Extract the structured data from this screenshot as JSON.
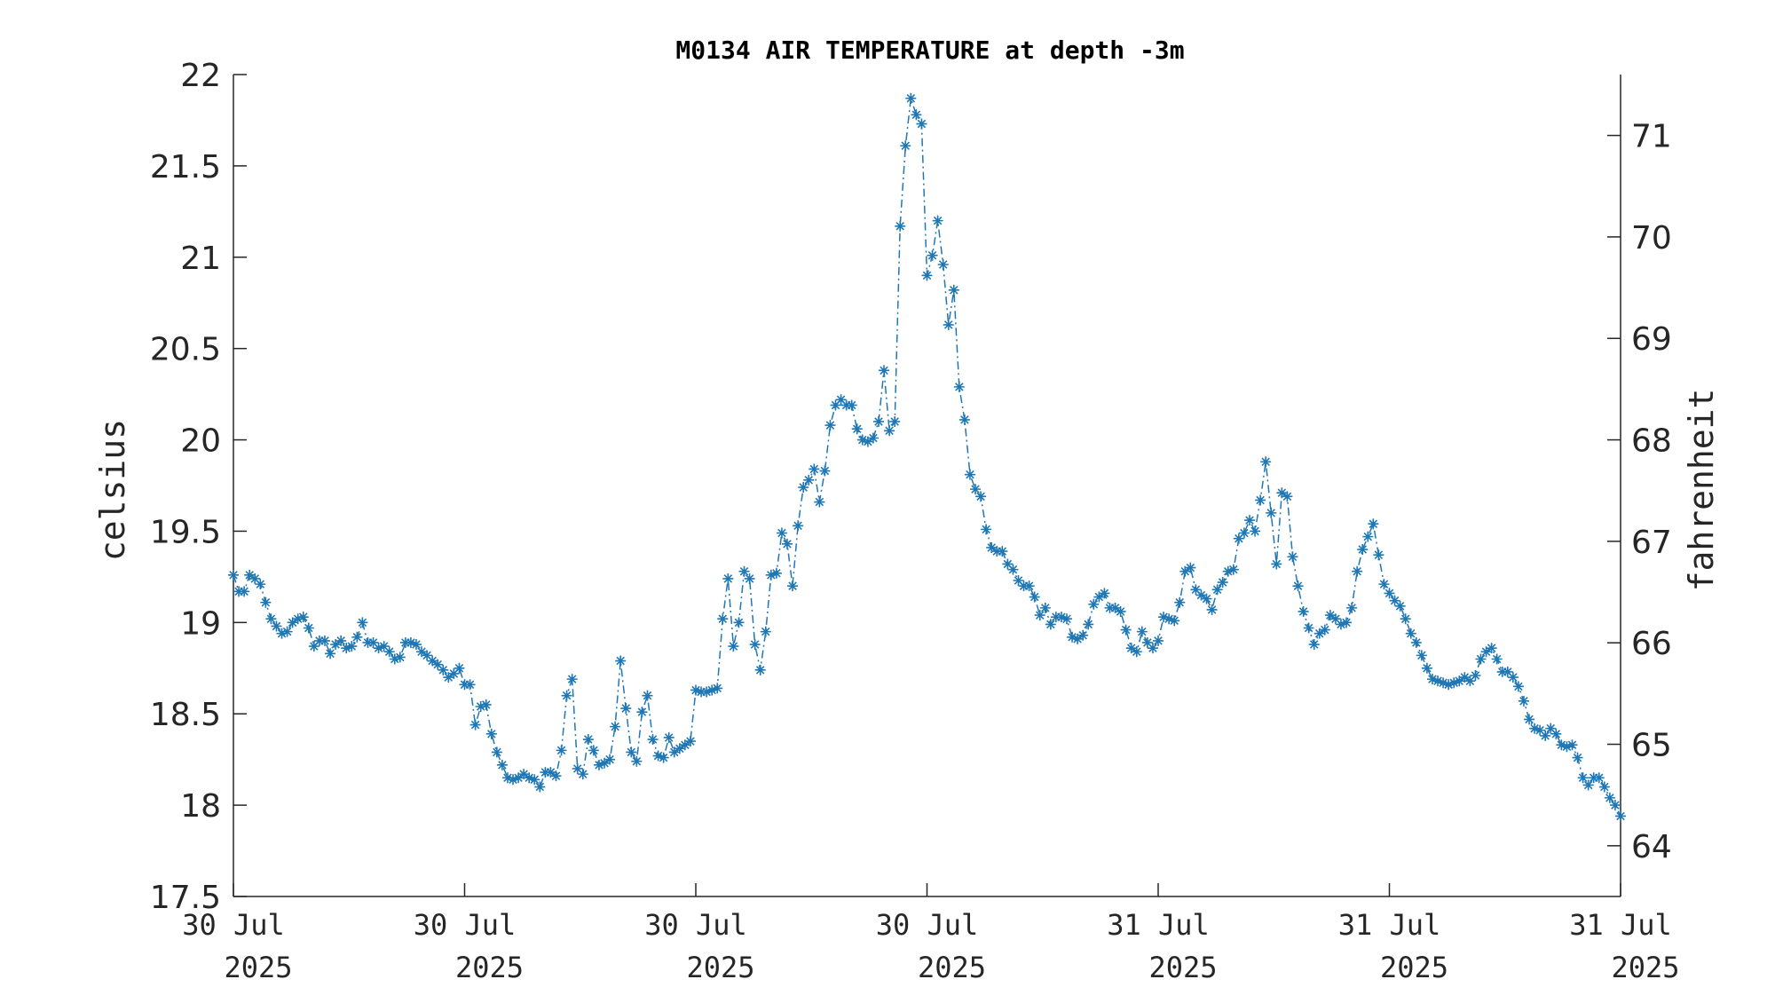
{
  "chart_data": {
    "type": "line",
    "title": "M0134 AIR TEMPERATURE at depth -3m",
    "ylabel_left": "celsius",
    "ylabel_right": "fahrenheit",
    "xlabel": "",
    "ylim": [
      17.5,
      22
    ],
    "ylim_right_derived_from": "celsius*9/5+32",
    "y_ticks": [
      "17.5",
      "18",
      "18.5",
      "19",
      "19.5",
      "20",
      "20.5",
      "21",
      "21.5",
      "22"
    ],
    "y_ticks_right": [
      "64",
      "65",
      "66",
      "67",
      "68",
      "69",
      "70",
      "71"
    ],
    "x_ticks": [
      {
        "day": "30 Jul",
        "year": "2025"
      },
      {
        "day": "30 Jul",
        "year": "2025"
      },
      {
        "day": "30 Jul",
        "year": "2025"
      },
      {
        "day": "30 Jul",
        "year": "2025"
      },
      {
        "day": "31 Jul",
        "year": "2025"
      },
      {
        "day": "31 Jul",
        "year": "2025"
      },
      {
        "day": "31 Jul",
        "year": "2025"
      }
    ],
    "grid": false,
    "marker": "*",
    "line_style": "dash-dot",
    "color": "#1f77b4",
    "series": [
      {
        "values": [
          19.26,
          19.17,
          19.17,
          19.26,
          19.24,
          19.21,
          19.11,
          19.02,
          18.98,
          18.94,
          18.95,
          19.0,
          19.02,
          19.03,
          18.97,
          18.87,
          18.9,
          18.9,
          18.83,
          18.88,
          18.9,
          18.86,
          18.87,
          18.92,
          19.0,
          18.89,
          18.89,
          18.86,
          18.87,
          18.84,
          18.8,
          18.81,
          18.89,
          18.89,
          18.88,
          18.84,
          18.82,
          18.79,
          18.77,
          18.74,
          18.7,
          18.72,
          18.75,
          18.66,
          18.66,
          18.44,
          18.54,
          18.55,
          18.39,
          18.29,
          18.22,
          18.15,
          18.14,
          18.15,
          18.17,
          18.15,
          18.14,
          18.1,
          18.18,
          18.18,
          18.16,
          18.3,
          18.6,
          18.69,
          18.2,
          18.17,
          18.36,
          18.3,
          18.22,
          18.23,
          18.25,
          18.43,
          18.79,
          18.53,
          18.29,
          18.24,
          18.51,
          18.6,
          18.36,
          18.27,
          18.26,
          18.37,
          18.29,
          18.31,
          18.33,
          18.35,
          18.63,
          18.62,
          18.62,
          18.63,
          18.64,
          19.02,
          19.24,
          18.87,
          19.0,
          19.28,
          19.24,
          18.88,
          18.74,
          18.95,
          19.26,
          19.27,
          19.49,
          19.43,
          19.2,
          19.53,
          19.74,
          19.78,
          19.84,
          19.66,
          19.83,
          20.08,
          20.19,
          20.22,
          20.19,
          20.19,
          20.06,
          20.0,
          19.99,
          20.01,
          20.1,
          20.38,
          20.05,
          20.1,
          21.17,
          21.61,
          21.87,
          21.78,
          21.73,
          20.9,
          21.01,
          21.2,
          20.96,
          20.63,
          20.82,
          20.29,
          20.11,
          19.81,
          19.73,
          19.69,
          19.51,
          19.41,
          19.39,
          19.39,
          19.32,
          19.29,
          19.23,
          19.2,
          19.2,
          19.14,
          19.04,
          19.08,
          18.99,
          19.03,
          19.03,
          19.02,
          18.92,
          18.91,
          18.93,
          18.99,
          19.1,
          19.14,
          19.16,
          19.08,
          19.08,
          19.06,
          18.96,
          18.86,
          18.84,
          18.95,
          18.89,
          18.86,
          18.9,
          19.03,
          19.02,
          19.01,
          19.11,
          19.28,
          19.3,
          19.18,
          19.15,
          19.13,
          19.07,
          19.18,
          19.22,
          19.28,
          19.29,
          19.46,
          19.49,
          19.56,
          19.5,
          19.67,
          19.88,
          19.6,
          19.32,
          19.71,
          19.69,
          19.36,
          19.2,
          19.06,
          18.97,
          18.88,
          18.94,
          18.96,
          19.04,
          19.02,
          18.99,
          19.0,
          19.08,
          19.28,
          19.4,
          19.47,
          19.54,
          19.37,
          19.21,
          19.16,
          19.12,
          19.09,
          19.02,
          18.94,
          18.89,
          18.82,
          18.75,
          18.69,
          18.68,
          18.67,
          18.66,
          18.67,
          18.68,
          18.7,
          18.68,
          18.71,
          18.8,
          18.84,
          18.86,
          18.8,
          18.73,
          18.73,
          18.7,
          18.65,
          18.57,
          18.47,
          18.42,
          18.41,
          18.38,
          18.42,
          18.39,
          18.33,
          18.32,
          18.33,
          18.26,
          18.15,
          18.11,
          18.15,
          18.15,
          18.1,
          18.04,
          18.0,
          17.94
        ]
      }
    ]
  }
}
